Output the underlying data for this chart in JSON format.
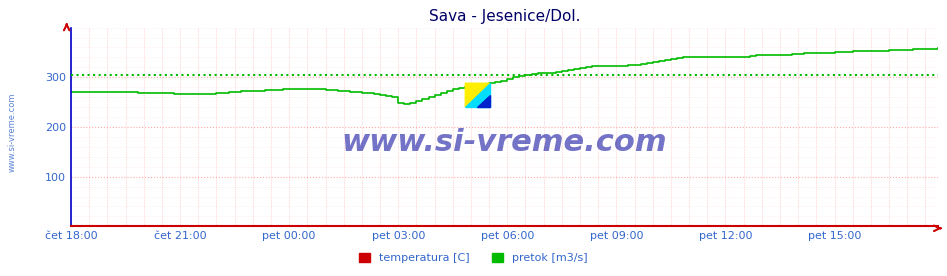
{
  "title": "Sava - Jesenice/Dol.",
  "bg_color": "#ffffff",
  "plot_bg_color": "#ffffff",
  "line_color_pretok": "#00bb00",
  "axis_color": "#0000cc",
  "xaxis_color": "#cc0000",
  "grid_color_h": "#ffaaaa",
  "grid_color_v": "#ffaaaa",
  "dotted_line_value": 305,
  "dotted_line_color": "#00bb00",
  "ylim": [
    0,
    400
  ],
  "yticks": [
    100,
    200,
    300
  ],
  "xtick_labels": [
    "čet 18:00",
    "čet 21:00",
    "pet 00:00",
    "pet 03:00",
    "pet 06:00",
    "pet 09:00",
    "pet 12:00",
    "pet 15:00"
  ],
  "xtick_positions": [
    0,
    18,
    36,
    54,
    72,
    90,
    108,
    126
  ],
  "total_points": 144,
  "pretok_values": [
    271,
    271,
    271,
    271,
    271,
    271,
    271,
    271,
    271,
    271,
    271,
    269,
    269,
    269,
    269,
    269,
    269,
    267,
    267,
    267,
    267,
    267,
    267,
    267,
    269,
    269,
    271,
    271,
    273,
    273,
    273,
    273,
    275,
    275,
    275,
    277,
    277,
    277,
    277,
    277,
    277,
    277,
    275,
    275,
    273,
    273,
    271,
    271,
    269,
    269,
    267,
    265,
    263,
    261,
    249,
    247,
    249,
    253,
    257,
    261,
    265,
    269,
    273,
    277,
    279,
    281,
    283,
    285,
    287,
    289,
    291,
    293,
    297,
    301,
    303,
    305,
    307,
    309,
    309,
    309,
    311,
    313,
    315,
    317,
    319,
    321,
    323,
    323,
    323,
    323,
    323,
    323,
    325,
    325,
    327,
    329,
    331,
    333,
    335,
    337,
    339,
    341,
    341,
    341,
    341,
    341,
    341,
    341,
    341,
    341,
    341,
    341,
    343,
    345,
    345,
    345,
    345,
    345,
    345,
    347,
    347,
    349,
    349,
    349,
    349,
    349,
    351,
    351,
    351,
    353,
    353,
    353,
    353,
    353,
    353,
    355,
    355,
    355,
    355,
    357,
    357,
    357,
    357,
    359
  ],
  "watermark_text": "www.si-vreme.com",
  "watermark_color": "#000099",
  "watermark_alpha": 0.55,
  "watermark_fontsize": 22,
  "legend_temp_label": "temperatura [C]",
  "legend_pretok_label": "pretok [m3/s]",
  "title_color": "#000066",
  "title_fontsize": 11,
  "tick_label_color": "#3366cc",
  "tick_label_fontsize": 8,
  "sidebar_text": "www.si-vreme.com",
  "sidebar_color": "#3366cc",
  "logo_yellow": "#ffee00",
  "logo_cyan": "#00ddff",
  "logo_blue": "#0022cc"
}
